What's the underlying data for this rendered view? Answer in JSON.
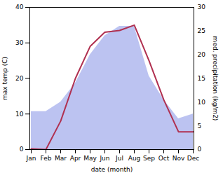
{
  "chart_data": {
    "type": "line",
    "categories": [
      "Jan",
      "Feb",
      "Mar",
      "Apr",
      "May",
      "Jun",
      "Jul",
      "Aug",
      "Sep",
      "Oct",
      "Nov",
      "Dec"
    ],
    "xlabel": "date (month)",
    "ylabel": "max temp (C)",
    "y2label": "med. precipitation (kg/m2)",
    "ylim": [
      0,
      40
    ],
    "yticks": [
      0,
      10,
      20,
      30,
      40
    ],
    "y2lim": [
      0,
      30
    ],
    "y2ticks": [
      0,
      5,
      10,
      15,
      20,
      25,
      30
    ],
    "grid": false,
    "series": [
      {
        "type": "area",
        "axis": "y2",
        "color": "#b0b8ee",
        "values": [
          8.0,
          8.0,
          10.0,
          14.0,
          20.0,
          24.0,
          26.0,
          26.0,
          15.5,
          10.5,
          6.5,
          7.5
        ]
      },
      {
        "type": "line",
        "color": "#b03050",
        "values": [
          0.2,
          0.0,
          8.0,
          20.0,
          29.0,
          33.0,
          33.5,
          35.0,
          25.0,
          14.0,
          5.0,
          5.0
        ]
      }
    ]
  }
}
